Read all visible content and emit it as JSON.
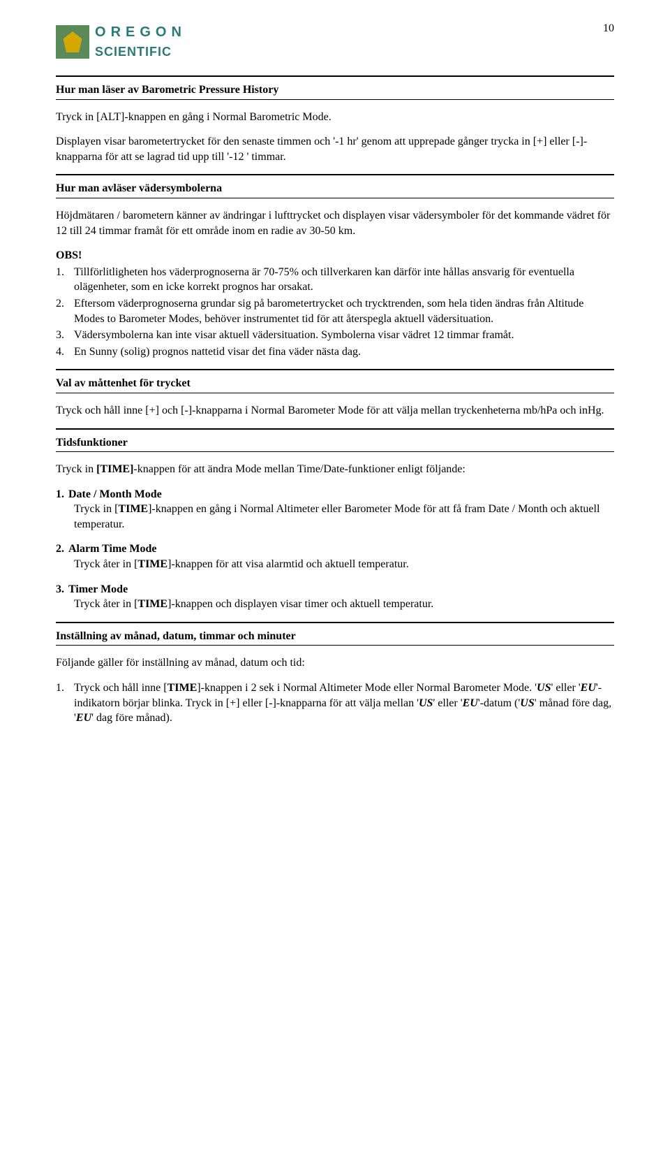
{
  "page_number": "10",
  "logo": {
    "line1_letters": [
      "O",
      "R",
      "E",
      "G",
      "O",
      "N"
    ],
    "line2": "SCIENTIFIC"
  },
  "sec1": {
    "title": "Hur man läser av Barometric Pressure History",
    "p1": "Tryck in [ALT]-knappen en gång i Normal Barometric Mode.",
    "p2": "Displayen visar barometertrycket för den senaste timmen och '-1 hr' genom att upprepade gånger trycka in [+] eller [-]-knapparna för att se lagrad tid upp till '-12 ' timmar."
  },
  "sec2": {
    "title": "Hur man avläser vädersymbolerna",
    "p1": "Höjdmätaren / barometern känner av ändringar i lufttrycket och displayen visar vädersymboler för det kommande vädret för 12 till 24 timmar framåt för ett område inom en radie av 30-50 km.",
    "obs": "OBS!",
    "items": [
      "Tillförlitligheten hos väderprognoserna är 70-75% och tillverkaren kan därför inte hållas ansvarig för eventuella olägenheter, som en icke korrekt prognos har orsakat.",
      "Eftersom väderprognoserna grundar sig på barometertrycket och trycktrenden, som hela tiden ändras från Altitude Modes to Barometer Modes, behöver instrumentet tid för att återspegla aktuell vädersituation.",
      "Vädersymbolerna kan inte visar aktuell vädersituation. Symbolerna visar vädret 12 timmar framåt.",
      "En Sunny (solig) prognos nattetid visar det fina väder nästa dag."
    ]
  },
  "sec3": {
    "title": "Val av måttenhet för trycket",
    "p1": "Tryck och håll inne [+] och [-]-knapparna i Normal Barometer Mode för att välja mellan tryckenheterna mb/hPa och inHg."
  },
  "sec4": {
    "title": "Tidsfunktioner",
    "p1_a": "Tryck in ",
    "p1_b": "[TIME]",
    "p1_c": "-knappen för att ändra Mode mellan Time/Date-funktioner enligt följande:",
    "modes": [
      {
        "num": "1.",
        "head": "Date / Month Mode",
        "desc_a": "Tryck in [",
        "desc_b": "TIME",
        "desc_c": "]-knappen en gång i Normal Altimeter eller Barometer Mode för att få fram Date / Month och aktuell temperatur."
      },
      {
        "num": "2.",
        "head": "Alarm Time Mode",
        "desc_a": "Tryck åter in [",
        "desc_b": "TIME",
        "desc_c": "]-knappen för att visa alarmtid och aktuell temperatur."
      },
      {
        "num": "3.",
        "head": "Timer Mode",
        "desc_a": "Tryck åter in [",
        "desc_b": "TIME",
        "desc_c": "]-knappen och displayen visar timer och aktuell temperatur."
      }
    ]
  },
  "sec5": {
    "title": "Inställning av månad, datum, timmar och minuter",
    "p1": "Följande gäller för inställning av månad, datum och tid:",
    "item_num": "1.",
    "item_a": "Tryck och håll inne [",
    "item_b": "TIME",
    "item_c": "]-knappen i 2 sek i Normal Altimeter Mode eller Normal Barometer Mode. '",
    "item_d": "US",
    "item_e": "' eller '",
    "item_f": "EU",
    "item_g": "'-indikatorn börjar blinka. Tryck in [+] eller [-]-knapparna för att välja mellan '",
    "item_h": "US",
    "item_i": "' eller '",
    "item_j": "EU",
    "item_k": "'-datum ('",
    "item_l": "US",
    "item_m": "' månad före dag, '",
    "item_n": "EU",
    "item_o": "' dag före månad)."
  }
}
